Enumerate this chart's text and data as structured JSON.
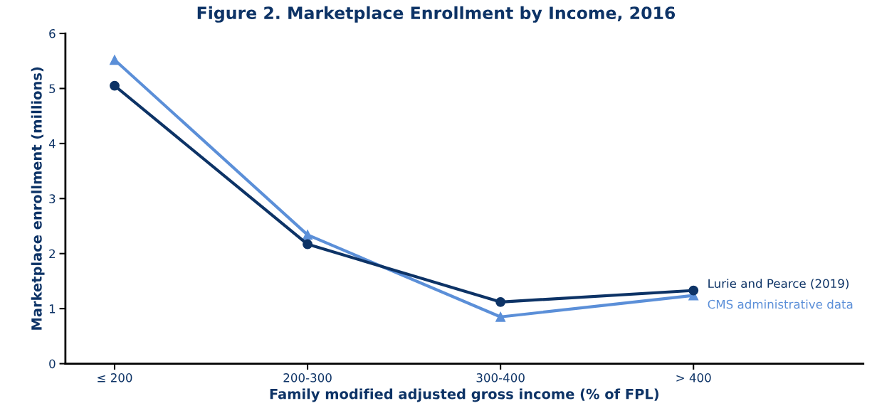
{
  "chart_data": {
    "type": "line",
    "title": "Figure 2. Marketplace Enrollment by Income, 2016",
    "xlabel": "Family modified adjusted gross income (% of FPL)",
    "ylabel": "Marketplace enrollment (millions)",
    "categories": [
      "≤ 200",
      "200-300",
      "300-400",
      "> 400"
    ],
    "series": [
      {
        "name": "Lurie and Pearce (2019)",
        "color": "#0d3366",
        "marker": "circle",
        "values": [
          5.05,
          2.17,
          1.12,
          1.33
        ]
      },
      {
        "name": "CMS administrative data",
        "color": "#5b8fd8",
        "marker": "triangle",
        "values": [
          5.52,
          2.34,
          0.85,
          1.24
        ]
      }
    ],
    "ylim": [
      0,
      6
    ],
    "yticks": [
      0,
      1,
      2,
      3,
      4,
      5,
      6
    ],
    "grid": false,
    "legend": false
  }
}
